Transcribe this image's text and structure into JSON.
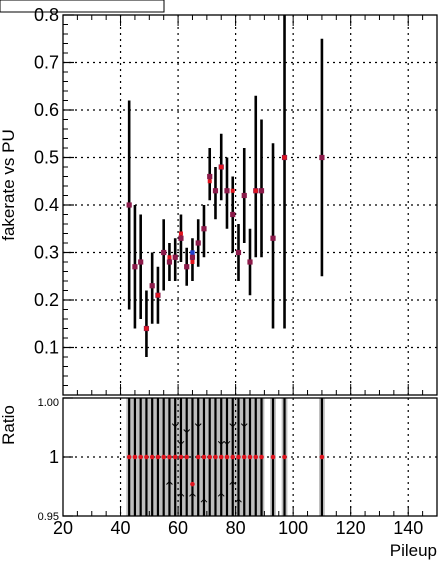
{
  "chart_data": [
    {
      "type": "scatter",
      "title": "",
      "xlabel": "",
      "ylabel": "fakerate vs PU",
      "xlim": [
        20,
        150
      ],
      "ylim": [
        0.0,
        0.8
      ],
      "y_ticks": [
        "0.1",
        "0.2",
        "0.3",
        "0.4",
        "0.5",
        "0.6",
        "0.7",
        "0.8"
      ],
      "grid": true,
      "series": [
        {
          "color": "#8B1A4A",
          "points": [
            {
              "x": 43,
              "y": 0.4,
              "lo": 0.18,
              "hi": 0.62
            },
            {
              "x": 45,
              "y": 0.27,
              "lo": 0.14,
              "hi": 0.4
            },
            {
              "x": 47,
              "y": 0.28,
              "lo": 0.16,
              "hi": 0.38
            },
            {
              "x": 49,
              "y": 0.14,
              "lo": 0.08,
              "hi": 0.22
            },
            {
              "x": 51,
              "y": 0.23,
              "lo": 0.15,
              "hi": 0.3
            },
            {
              "x": 53,
              "y": 0.21,
              "lo": 0.15,
              "hi": 0.27
            },
            {
              "x": 55,
              "y": 0.3,
              "lo": 0.22,
              "hi": 0.37
            },
            {
              "x": 57,
              "y": 0.28,
              "lo": 0.24,
              "hi": 0.32
            },
            {
              "x": 59,
              "y": 0.29,
              "lo": 0.24,
              "hi": 0.33
            },
            {
              "x": 61,
              "y": 0.33,
              "lo": 0.28,
              "hi": 0.38
            },
            {
              "x": 63,
              "y": 0.27,
              "lo": 0.23,
              "hi": 0.31
            },
            {
              "x": 65,
              "y": 0.29,
              "lo": 0.24,
              "hi": 0.33
            },
            {
              "x": 67,
              "y": 0.32,
              "lo": 0.27,
              "hi": 0.37
            },
            {
              "x": 69,
              "y": 0.35,
              "lo": 0.29,
              "hi": 0.4
            },
            {
              "x": 71,
              "y": 0.46,
              "lo": 0.41,
              "hi": 0.52
            },
            {
              "x": 73,
              "y": 0.43,
              "lo": 0.37,
              "hi": 0.48
            },
            {
              "x": 75,
              "y": 0.48,
              "lo": 0.41,
              "hi": 0.55
            },
            {
              "x": 77,
              "y": 0.43,
              "lo": 0.35,
              "hi": 0.5
            },
            {
              "x": 79,
              "y": 0.38,
              "lo": 0.3,
              "hi": 0.46
            },
            {
              "x": 81,
              "y": 0.3,
              "lo": 0.24,
              "hi": 0.36
            },
            {
              "x": 83,
              "y": 0.42,
              "lo": 0.32,
              "hi": 0.52
            },
            {
              "x": 85,
              "y": 0.28,
              "lo": 0.21,
              "hi": 0.35
            },
            {
              "x": 87,
              "y": 0.43,
              "lo": 0.29,
              "hi": 0.63
            },
            {
              "x": 89,
              "y": 0.43,
              "lo": 0.29,
              "hi": 0.58
            },
            {
              "x": 93,
              "y": 0.33,
              "lo": 0.14,
              "hi": 0.53
            },
            {
              "x": 97,
              "y": 0.5,
              "lo": 0.14,
              "hi": 0.8
            },
            {
              "x": 110,
              "y": 0.5,
              "lo": 0.25,
              "hi": 0.75
            }
          ]
        },
        {
          "color": "#E0141E",
          "points": [
            {
              "x": 49,
              "y": 0.14
            },
            {
              "x": 53,
              "y": 0.21
            },
            {
              "x": 57,
              "y": 0.29
            },
            {
              "x": 61,
              "y": 0.34
            },
            {
              "x": 65,
              "y": 0.28
            },
            {
              "x": 71,
              "y": 0.45
            },
            {
              "x": 75,
              "y": 0.48
            },
            {
              "x": 79,
              "y": 0.43
            },
            {
              "x": 87,
              "y": 0.43
            },
            {
              "x": 97,
              "y": 0.5
            }
          ]
        },
        {
          "color": "#1F3FD0",
          "points": [
            {
              "x": 65,
              "y": 0.3
            }
          ]
        }
      ]
    },
    {
      "type": "scatter",
      "title": "",
      "xlabel": "Pileup",
      "ylabel": "Ratio",
      "xlim": [
        20,
        150
      ],
      "ylim": [
        0.95,
        1.05
      ],
      "x_ticks": [
        "20",
        "40",
        "60",
        "80",
        "100",
        "120",
        "140"
      ],
      "y_ticks": [
        "0.95",
        "1",
        "1.05"
      ],
      "y_tick_labels_shown": [
        "0.95",
        "1",
        "1.00"
      ],
      "grid": true,
      "bands": [
        {
          "x0": 42,
          "x1": 90
        },
        {
          "x0": 92,
          "x1": 94
        },
        {
          "x0": 96,
          "x1": 98
        },
        {
          "x0": 109,
          "x1": 111
        }
      ],
      "points": [
        {
          "x": 43,
          "y": 1.0
        },
        {
          "x": 45,
          "y": 1.0
        },
        {
          "x": 47,
          "y": 1.0
        },
        {
          "x": 49,
          "y": 1.0
        },
        {
          "x": 51,
          "y": 1.0
        },
        {
          "x": 53,
          "y": 1.0
        },
        {
          "x": 55,
          "y": 1.0
        },
        {
          "x": 57,
          "y": 1.0
        },
        {
          "x": 59,
          "y": 1.0
        },
        {
          "x": 61,
          "y": 1.0
        },
        {
          "x": 63,
          "y": 1.0
        },
        {
          "x": 65,
          "y": 0.977
        },
        {
          "x": 67,
          "y": 1.0
        },
        {
          "x": 69,
          "y": 1.0
        },
        {
          "x": 71,
          "y": 1.0
        },
        {
          "x": 73,
          "y": 1.0
        },
        {
          "x": 75,
          "y": 1.0
        },
        {
          "x": 77,
          "y": 1.0
        },
        {
          "x": 79,
          "y": 1.0
        },
        {
          "x": 81,
          "y": 1.0
        },
        {
          "x": 83,
          "y": 1.0
        },
        {
          "x": 85,
          "y": 1.0
        },
        {
          "x": 87,
          "y": 1.0
        },
        {
          "x": 89,
          "y": 1.0
        },
        {
          "x": 93,
          "y": 1.0
        },
        {
          "x": 97,
          "y": 1.0
        },
        {
          "x": 110,
          "y": 1.0
        }
      ],
      "arrows_down": [
        {
          "x": 59,
          "y": 1.03
        },
        {
          "x": 61,
          "y": 1.015
        },
        {
          "x": 63,
          "y": 1.025
        },
        {
          "x": 67,
          "y": 1.03
        },
        {
          "x": 75,
          "y": 1.015
        },
        {
          "x": 77,
          "y": 1.015
        },
        {
          "x": 79,
          "y": 1.03
        },
        {
          "x": 83,
          "y": 1.03
        }
      ],
      "arrows_up": [
        {
          "x": 57,
          "y": 0.975
        },
        {
          "x": 61,
          "y": 0.965
        },
        {
          "x": 65,
          "y": 0.965
        },
        {
          "x": 69,
          "y": 0.96
        },
        {
          "x": 75,
          "y": 0.965
        },
        {
          "x": 79,
          "y": 0.975
        },
        {
          "x": 81,
          "y": 0.96
        }
      ]
    }
  ],
  "colors": {
    "marker": "#8B1A4A",
    "marker_red": "#E0141E",
    "marker_blue": "#1F3FD0",
    "band": "#BEBEBE",
    "axis": "#000000",
    "grid": "#000000"
  }
}
